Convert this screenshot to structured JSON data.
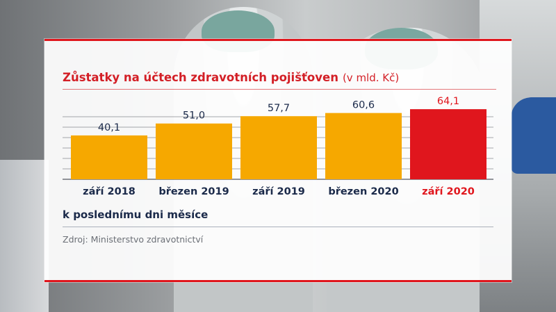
{
  "chart_data": {
    "type": "bar",
    "title": "Zůstatky na účtech zdravotních pojišťoven",
    "unit": "(v mld. Kč)",
    "categories": [
      "září 2018",
      "březen 2019",
      "září 2019",
      "březen 2020",
      "září 2020"
    ],
    "values": [
      40.1,
      51.0,
      57.7,
      60.6,
      64.1
    ],
    "value_labels": [
      "40,1",
      "51,0",
      "57,7",
      "60,6",
      "64,1"
    ],
    "highlight_index": 4,
    "ylim": [
      0,
      70
    ],
    "grid": true,
    "xlabel": "",
    "ylabel": ""
  },
  "subtitle": "k poslednímu dni měsíce",
  "source": "Zdroj: Ministerstvo zdravotnictví",
  "colors": {
    "bar": "#f6a800",
    "highlight_bar": "#e0161d",
    "label": "#1b2a4a",
    "highlight_label": "#e0161d",
    "accent": "#d31f26"
  }
}
